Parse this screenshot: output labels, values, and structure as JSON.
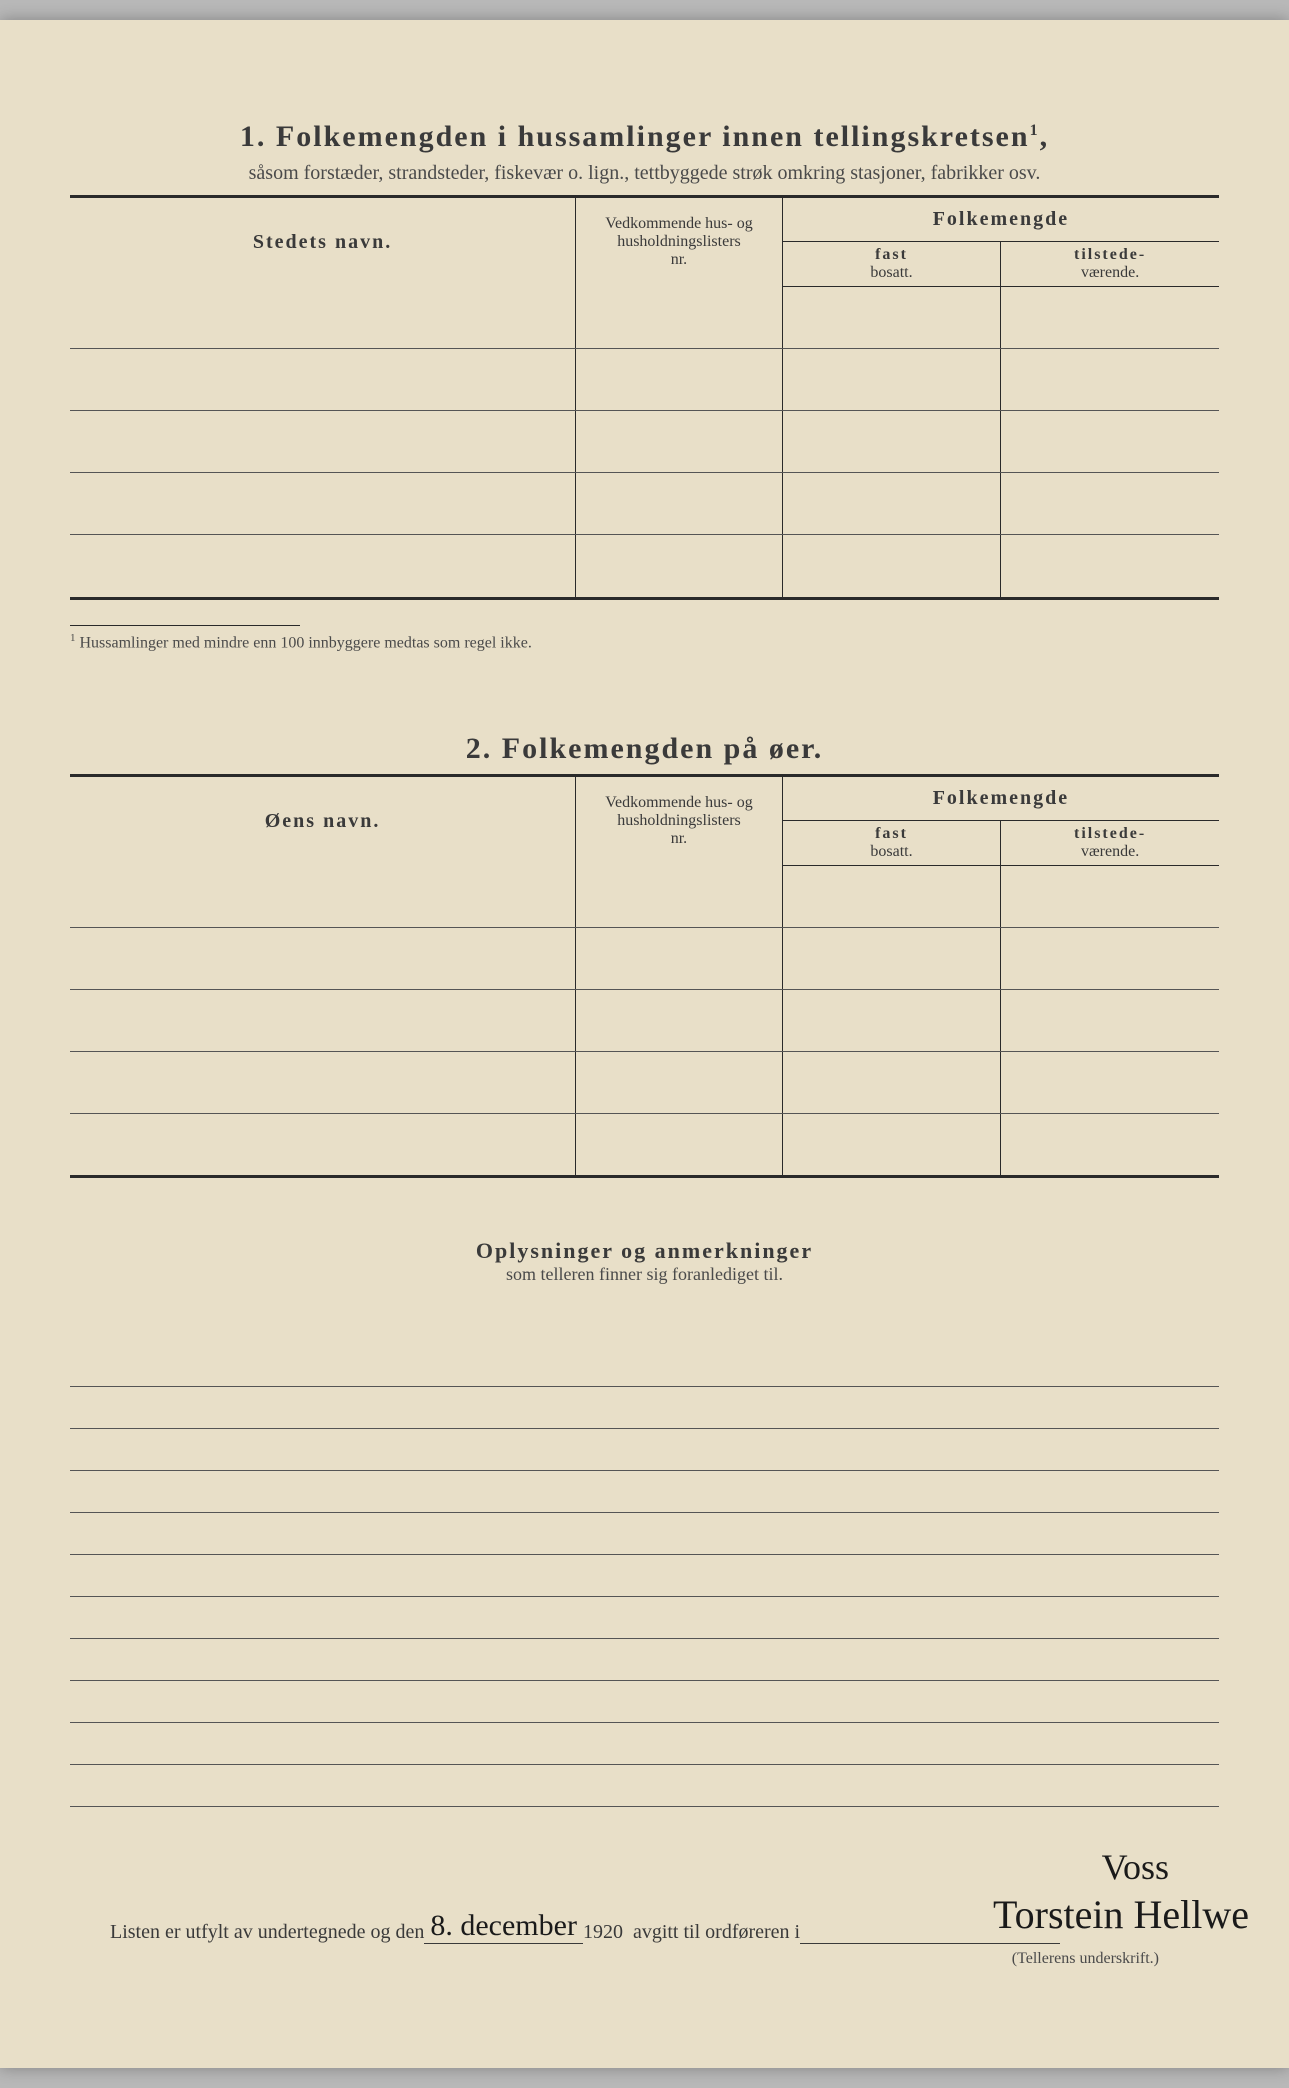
{
  "section1": {
    "number": "1.",
    "title": "Folkemengden i hussamlinger innen tellingskretsen",
    "title_sup": "1",
    "subtitle": "såsom forstæder, strandsteder, fiskevær o. lign., tettbyggede strøk omkring stasjoner, fabrikker osv.",
    "col_name": "Stedets navn.",
    "col_nr_l1": "Vedkommende hus- og",
    "col_nr_l2": "husholdningslisters",
    "col_nr_l3": "nr.",
    "col_folk": "Folkemengde",
    "col_fast_l1": "fast",
    "col_fast_l2": "bosatt.",
    "col_til_l1": "tilstede-",
    "col_til_l2": "værende.",
    "row_count": 5,
    "footnote_sup": "1",
    "footnote": "Hussamlinger med mindre enn 100 innbyggere medtas som regel ikke."
  },
  "section2": {
    "number": "2.",
    "title": "Folkemengden på øer.",
    "col_name": "Øens navn.",
    "row_count": 5
  },
  "section3": {
    "title": "Oplysninger og anmerkninger",
    "subtitle": "som telleren finner sig foranlediget til.",
    "line_count": 11
  },
  "signature": {
    "text_pre": "Listen er utfylt av undertegnede og den",
    "date_hw": "8. december",
    "year": "1920",
    "text_mid": "avgitt til ordføreren i",
    "place_hw": "Voss",
    "sign_hw": "Torstein Hellwe",
    "caption": "(Tellerens underskrift.)"
  },
  "styling": {
    "paper_bg": "#e8dfc8",
    "text_color": "#3a3a3a",
    "rule_color": "#2a2a2a",
    "title_fontsize": 30,
    "subtitle_fontsize": 20,
    "body_fontsize": 18,
    "table_row_height": 62,
    "ruled_line_height": 42
  }
}
